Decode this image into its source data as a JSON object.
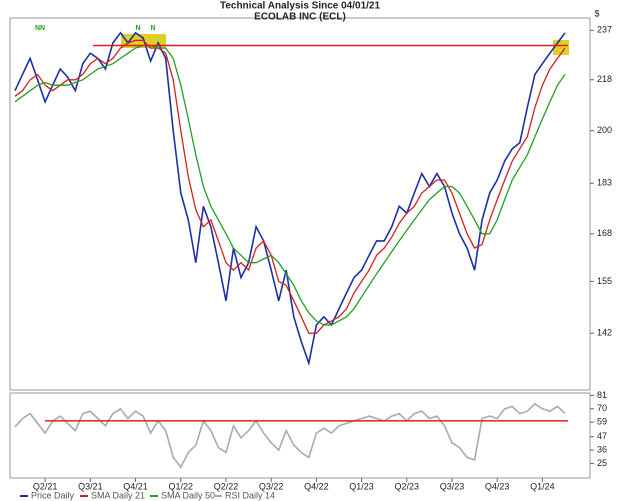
{
  "chart_data": [
    {
      "type": "line",
      "title": "Technical Analysis Since 04/01/21",
      "subtitle": "ECOLAB INC (ECL)",
      "y_unit": "$",
      "log_scale": true,
      "ylim": [
        129,
        242
      ],
      "yticks": [
        142,
        155,
        168,
        183,
        200,
        218,
        237
      ],
      "reference_line": {
        "value": 231,
        "color": "#e02020"
      },
      "annotations": [
        "NN",
        "N",
        "N"
      ],
      "annotation_color": "#1aa01a",
      "categories": [
        null,
        null,
        null,
        null,
        "Q2/21",
        null,
        null,
        null,
        null,
        null,
        "Q3/21",
        null,
        null,
        null,
        null,
        null,
        "Q4/21",
        null,
        null,
        null,
        null,
        null,
        "Q1/22",
        null,
        null,
        null,
        null,
        null,
        "Q2/22",
        null,
        null,
        null,
        null,
        null,
        "Q3/22",
        null,
        null,
        null,
        null,
        null,
        "Q4/22",
        null,
        null,
        null,
        null,
        null,
        "Q1/23",
        null,
        null,
        null,
        null,
        null,
        "Q2/23",
        null,
        null,
        null,
        null,
        null,
        "Q3/23",
        null,
        null,
        null,
        null,
        null,
        "Q4/23",
        null,
        null,
        null,
        null,
        null,
        "Q1/24",
        null,
        null,
        null
      ],
      "series": [
        {
          "name": "Price Daily",
          "color": "#1c2fa8",
          "values": [
            214,
            220,
            226,
            218,
            210,
            216,
            222,
            219,
            214,
            224,
            228,
            226,
            222,
            232,
            236,
            232,
            236,
            234,
            225,
            232,
            226,
            200,
            180,
            172,
            160,
            176,
            170,
            160,
            150,
            164,
            156,
            160,
            170,
            166,
            158,
            150,
            158,
            146,
            140,
            135,
            144,
            146,
            144,
            148,
            152,
            156,
            158,
            162,
            166,
            166,
            170,
            176,
            174,
            180,
            186,
            182,
            186,
            182,
            174,
            168,
            164,
            158,
            172,
            180,
            184,
            190,
            194,
            196,
            208,
            220,
            224,
            228,
            232,
            236
          ]
        },
        {
          "name": "SMA Daily 21",
          "color": "#d42020",
          "values": [
            212,
            214,
            218,
            220,
            216,
            214,
            216,
            218,
            218,
            220,
            224,
            226,
            224,
            226,
            230,
            232,
            233,
            233,
            230,
            230,
            228,
            218,
            200,
            185,
            175,
            170,
            172,
            166,
            160,
            158,
            160,
            158,
            164,
            166,
            162,
            155,
            154,
            150,
            146,
            142,
            142,
            144,
            145,
            146,
            148,
            152,
            155,
            158,
            162,
            164,
            167,
            171,
            174,
            176,
            180,
            182,
            184,
            184,
            180,
            174,
            168,
            164,
            165,
            172,
            178,
            184,
            190,
            194,
            198,
            208,
            216,
            222,
            226,
            230
          ]
        },
        {
          "name": "SMA Daily 50",
          "color": "#22a022",
          "values": [
            210,
            212,
            214,
            216,
            217,
            216,
            216,
            216,
            217,
            218,
            220,
            222,
            223,
            224,
            226,
            228,
            230,
            231,
            231,
            230,
            230,
            226,
            216,
            204,
            192,
            182,
            176,
            172,
            168,
            164,
            162,
            160,
            160,
            161,
            162,
            160,
            157,
            154,
            150,
            147,
            145,
            144,
            144,
            145,
            146,
            148,
            151,
            154,
            157,
            160,
            163,
            166,
            169,
            172,
            175,
            178,
            180,
            182,
            182,
            180,
            176,
            172,
            168,
            168,
            172,
            178,
            184,
            188,
            192,
            198,
            204,
            210,
            216,
            220
          ]
        }
      ]
    },
    {
      "type": "line",
      "ylim": [
        13,
        83
      ],
      "yticks": [
        25,
        36,
        47,
        59,
        70,
        81
      ],
      "reference_line": {
        "value": 60,
        "color": "#e02020"
      },
      "series": [
        {
          "name": "RSI Daily 14",
          "color": "#aaaaaa",
          "values": [
            55,
            62,
            66,
            58,
            50,
            60,
            64,
            58,
            52,
            66,
            68,
            62,
            56,
            66,
            70,
            62,
            68,
            64,
            50,
            60,
            52,
            30,
            22,
            34,
            40,
            60,
            52,
            38,
            34,
            56,
            46,
            52,
            60,
            50,
            42,
            36,
            52,
            40,
            34,
            30,
            50,
            54,
            50,
            56,
            58,
            60,
            62,
            64,
            62,
            60,
            64,
            66,
            60,
            66,
            68,
            62,
            64,
            56,
            42,
            38,
            30,
            28,
            62,
            64,
            62,
            70,
            72,
            66,
            68,
            74,
            70,
            68,
            72,
            66
          ]
        }
      ]
    }
  ]
}
